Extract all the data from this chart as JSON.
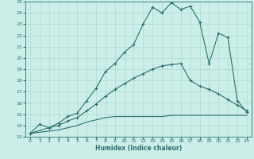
{
  "xlabel": "Humidex (Indice chaleur)",
  "bg_color": "#cceee8",
  "line_color": "#2a7070",
  "grid_color": "#b0d8d0",
  "xlim": [
    -0.5,
    23.5
  ],
  "ylim": [
    13,
    25
  ],
  "xticks": [
    0,
    1,
    2,
    3,
    4,
    5,
    6,
    7,
    8,
    9,
    10,
    11,
    12,
    13,
    14,
    15,
    16,
    17,
    18,
    19,
    20,
    21,
    22,
    23
  ],
  "yticks": [
    13,
    14,
    15,
    16,
    17,
    18,
    19,
    20,
    21,
    22,
    23,
    24,
    25
  ],
  "line1_x": [
    0,
    1,
    2,
    3,
    4,
    5,
    6,
    7,
    8,
    9,
    10,
    11,
    12,
    13,
    14,
    15,
    16,
    17,
    18,
    19,
    20,
    21,
    22,
    23
  ],
  "line1_y": [
    13.3,
    14.1,
    13.8,
    14.2,
    14.8,
    15.1,
    16.2,
    17.3,
    18.8,
    19.5,
    20.5,
    21.2,
    23.0,
    24.5,
    24.0,
    24.9,
    24.3,
    24.6,
    23.2,
    19.5,
    22.2,
    21.8,
    16.2,
    15.2
  ],
  "line2_x": [
    0,
    2,
    3,
    4,
    5,
    6,
    7,
    8,
    9,
    10,
    11,
    12,
    13,
    14,
    15,
    16,
    17,
    18,
    19,
    20,
    21,
    22,
    23
  ],
  "line2_y": [
    13.3,
    13.8,
    14.0,
    14.4,
    14.7,
    15.3,
    15.9,
    16.6,
    17.2,
    17.7,
    18.2,
    18.6,
    19.0,
    19.3,
    19.4,
    19.5,
    18.0,
    17.5,
    17.2,
    16.8,
    16.3,
    15.8,
    15.3
  ],
  "line3_x": [
    0,
    2,
    3,
    4,
    5,
    6,
    7,
    8,
    9,
    10,
    11,
    12,
    13,
    14,
    15,
    16,
    17,
    18,
    19,
    20,
    21,
    22,
    23
  ],
  "line3_y": [
    13.3,
    13.5,
    13.6,
    13.8,
    14.0,
    14.3,
    14.5,
    14.7,
    14.8,
    14.8,
    14.8,
    14.8,
    14.8,
    14.8,
    14.9,
    14.9,
    14.9,
    14.9,
    14.9,
    14.9,
    14.9,
    14.9,
    14.9
  ]
}
